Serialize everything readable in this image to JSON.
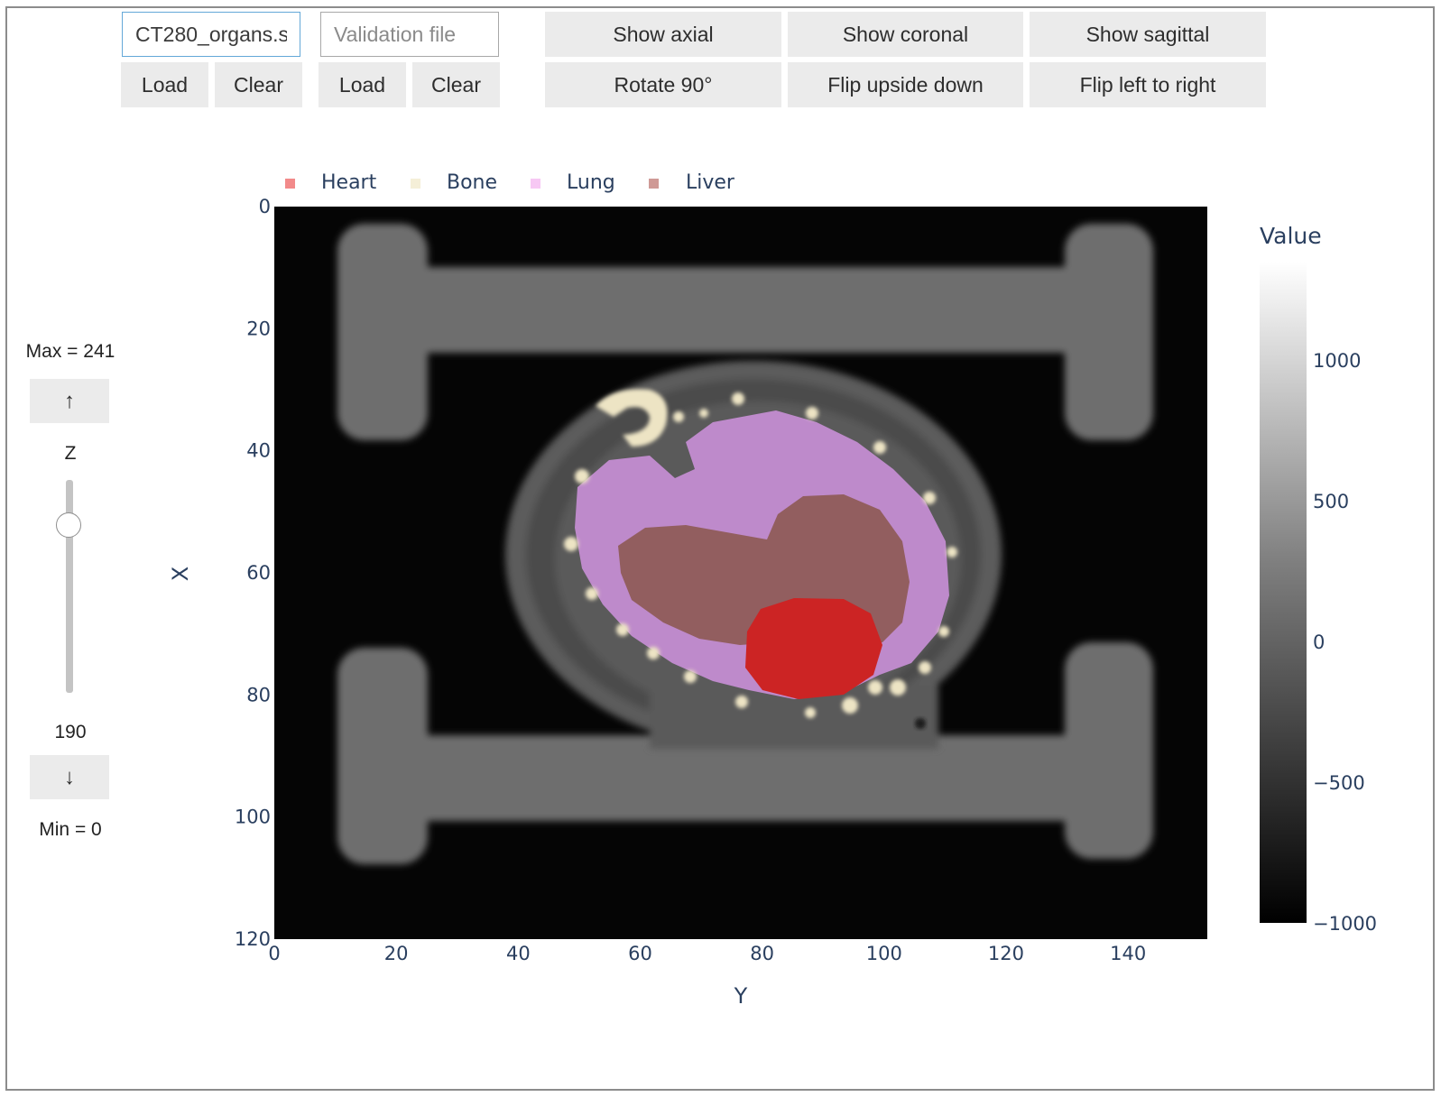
{
  "top_controls": {
    "train_file": {
      "value": "CT280_organs.s",
      "placeholder": ""
    },
    "validation_file": {
      "value": "",
      "placeholder": "Validation file"
    },
    "train_load": "Load",
    "train_clear": "Clear",
    "val_load": "Load",
    "val_clear": "Clear",
    "show_axial": "Show axial",
    "show_coronal": "Show coronal",
    "show_sagittal": "Show sagittal",
    "rotate": "Rotate 90°",
    "flip_ud": "Flip upside down",
    "flip_lr": "Flip left to right"
  },
  "slice_control": {
    "max_label": "Max = 241",
    "up_arrow": "↑",
    "axis_name": "Z",
    "current_value": "190",
    "down_arrow": "↓",
    "min_label": "Min = 0",
    "min": 0,
    "max": 241,
    "value": 190
  },
  "legend": [
    {
      "name": "Heart",
      "color": "#f28a8a"
    },
    {
      "name": "Bone",
      "color": "#f5efd8"
    },
    {
      "name": "Lung",
      "color": "#f7c8f4"
    },
    {
      "name": "Liver",
      "color": "#cf9a96"
    }
  ],
  "plot": {
    "xlabel": "Y",
    "ylabel": "X",
    "x_ticks": [
      "0",
      "20",
      "40",
      "60",
      "80",
      "100",
      "120",
      "140"
    ],
    "y_ticks": [
      "0",
      "20",
      "40",
      "60",
      "80",
      "100",
      "120"
    ],
    "colorbar_title": "Value",
    "colorbar_ticks": [
      "1000",
      "500",
      "0",
      "−500",
      "−1000"
    ]
  },
  "chart_data": {
    "type": "heatmap",
    "title": "",
    "xlabel": "Y",
    "ylabel": "X",
    "xlim": [
      0,
      153
    ],
    "ylim": [
      120,
      0
    ],
    "colorscale": "greys",
    "zlim": [
      -1000,
      1350
    ],
    "colorbar_title": "Value",
    "overlay_classes": [
      "Heart",
      "Bone",
      "Lung",
      "Liver"
    ],
    "overlay_colors": {
      "Heart": "#d42020",
      "Bone": "#f2ead0",
      "Lung": "#c990d8",
      "Liver": "#a86460"
    }
  }
}
